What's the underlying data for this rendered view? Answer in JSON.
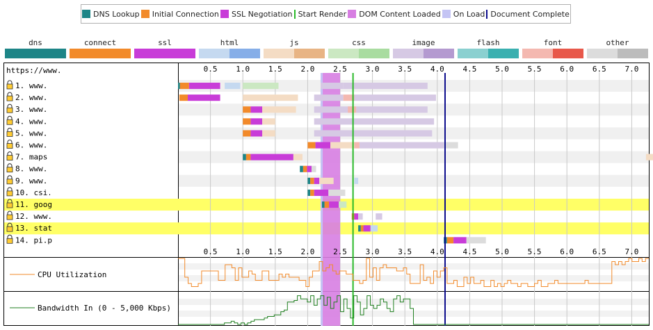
{
  "chart_data": {
    "type": "waterfall",
    "legend": [
      {
        "label": "DNS Lookup",
        "kind": "box",
        "color": "#1d8587"
      },
      {
        "label": "Initial Connection",
        "kind": "box",
        "color": "#f28a2a"
      },
      {
        "label": "SSL Negotiation",
        "kind": "box",
        "color": "#c83cd8"
      },
      {
        "label": "Start Render",
        "kind": "line",
        "color": "#28b928"
      },
      {
        "label": "DOM Content Loaded",
        "kind": "box",
        "color": "#d77ee2"
      },
      {
        "label": "On Load",
        "kind": "box",
        "color": "#c4c4f4"
      },
      {
        "label": "Document Complete",
        "kind": "line",
        "color": "#0b0b8c"
      }
    ],
    "content_types": [
      {
        "label": "dns",
        "light": "#1d8587",
        "dark": "#1d8587"
      },
      {
        "label": "connect",
        "light": "#f28a2a",
        "dark": "#f28a2a"
      },
      {
        "label": "ssl",
        "light": "#c83cd8",
        "dark": "#c83cd8"
      },
      {
        "label": "html",
        "light": "#c5d9f0",
        "dark": "#86aee8"
      },
      {
        "label": "js",
        "light": "#f4dcc4",
        "dark": "#e8b484"
      },
      {
        "label": "css",
        "light": "#cbe8c2",
        "dark": "#a9dca0"
      },
      {
        "label": "image",
        "light": "#d6c9e4",
        "dark": "#b49ad0"
      },
      {
        "label": "flash",
        "light": "#8ad0d0",
        "dark": "#3ab0b0"
      },
      {
        "label": "font",
        "light": "#f4b8b0",
        "dark": "#e8584a"
      },
      {
        "label": "other",
        "light": "#dcdcdc",
        "dark": "#bcbcbc"
      }
    ],
    "x_ticks": [
      "0.5",
      "1.0",
      "1.5",
      "2.0",
      "2.5",
      "3.0",
      "3.5",
      "4.0",
      "4.5",
      "5.0",
      "5.5",
      "6.0",
      "6.5",
      "7.0"
    ],
    "x_range": [
      0,
      7.2
    ],
    "page_url": "https://www.",
    "markers": {
      "start_render": 2.7,
      "dom_content_loaded": [
        2.2,
        2.5
      ],
      "on_load": [
        2.2,
        2.22
      ],
      "document_complete": 4.12
    },
    "rows": [
      {
        "label": "1. www.",
        "secure": true,
        "highlight": false,
        "segments": [
          [
            0.0,
            0.03,
            "dns"
          ],
          [
            0.03,
            0.17,
            "connect"
          ],
          [
            0.17,
            0.65,
            "ssl"
          ],
          [
            0.72,
            0.96,
            "html"
          ],
          [
            1.0,
            1.55,
            "css"
          ],
          [
            2.2,
            2.55,
            "image"
          ],
          [
            2.55,
            3.85,
            "image"
          ]
        ]
      },
      {
        "label": "2. www.",
        "secure": true,
        "highlight": false,
        "segments": [
          [
            0.02,
            0.15,
            "connect"
          ],
          [
            0.15,
            0.65,
            "ssl"
          ],
          [
            1.0,
            1.85,
            "js"
          ],
          [
            2.1,
            2.55,
            "image"
          ],
          [
            2.55,
            2.72,
            "font"
          ],
          [
            2.72,
            3.98,
            "image"
          ]
        ]
      },
      {
        "label": "3. www.",
        "secure": true,
        "highlight": false,
        "segments": [
          [
            1.0,
            1.12,
            "connect"
          ],
          [
            1.12,
            1.3,
            "ssl"
          ],
          [
            1.3,
            1.82,
            "js"
          ],
          [
            2.1,
            2.7,
            "image"
          ],
          [
            2.62,
            2.75,
            "font"
          ],
          [
            2.75,
            3.85,
            "image"
          ]
        ]
      },
      {
        "label": "4. www.",
        "secure": true,
        "highlight": false,
        "segments": [
          [
            1.0,
            1.12,
            "connect"
          ],
          [
            1.12,
            1.3,
            "ssl"
          ],
          [
            1.3,
            1.5,
            "js"
          ],
          [
            2.1,
            3.95,
            "image"
          ]
        ]
      },
      {
        "label": "5. www.",
        "secure": true,
        "highlight": false,
        "segments": [
          [
            1.0,
            1.12,
            "connect"
          ],
          [
            1.12,
            1.3,
            "ssl"
          ],
          [
            1.3,
            1.5,
            "js"
          ],
          [
            2.1,
            3.92,
            "image"
          ]
        ]
      },
      {
        "label": "6. www.",
        "secure": true,
        "highlight": false,
        "segments": [
          [
            2.0,
            2.12,
            "connect"
          ],
          [
            2.12,
            2.35,
            "ssl"
          ],
          [
            2.35,
            2.72,
            "js"
          ],
          [
            2.72,
            2.8,
            "font"
          ],
          [
            2.8,
            4.1,
            "image"
          ],
          [
            4.1,
            4.32,
            "other"
          ]
        ]
      },
      {
        "label": "7. maps",
        "secure": true,
        "highlight": false,
        "segments": [
          [
            1.0,
            1.05,
            "dns"
          ],
          [
            1.05,
            1.12,
            "connect"
          ],
          [
            1.12,
            1.78,
            "ssl"
          ],
          [
            1.78,
            1.92,
            "js"
          ],
          [
            7.22,
            7.45,
            "js"
          ]
        ]
      },
      {
        "label": "8. www.",
        "secure": true,
        "highlight": false,
        "segments": [
          [
            1.88,
            1.93,
            "dns"
          ],
          [
            1.93,
            1.99,
            "connect"
          ],
          [
            1.99,
            2.06,
            "ssl"
          ],
          [
            2.06,
            2.13,
            "other"
          ]
        ]
      },
      {
        "label": "9. www.",
        "secure": true,
        "highlight": false,
        "segments": [
          [
            2.0,
            2.04,
            "dns"
          ],
          [
            2.04,
            2.1,
            "connect"
          ],
          [
            2.1,
            2.18,
            "ssl"
          ],
          [
            2.18,
            2.4,
            "js"
          ],
          [
            2.72,
            2.78,
            "html"
          ]
        ]
      },
      {
        "label": "10. csi.",
        "secure": true,
        "highlight": false,
        "segments": [
          [
            2.0,
            2.04,
            "dns"
          ],
          [
            2.04,
            2.1,
            "connect"
          ],
          [
            2.1,
            2.32,
            "ssl"
          ],
          [
            2.32,
            2.58,
            "other"
          ]
        ]
      },
      {
        "label": "11. goog",
        "secure": true,
        "highlight": true,
        "segments": [
          [
            2.22,
            2.26,
            "dns"
          ],
          [
            2.26,
            2.33,
            "connect"
          ],
          [
            2.33,
            2.48,
            "ssl"
          ],
          [
            2.48,
            2.6,
            "css"
          ]
        ]
      },
      {
        "label": "12. www.",
        "secure": true,
        "highlight": false,
        "segments": [
          [
            2.68,
            2.72,
            "connect"
          ],
          [
            2.72,
            2.78,
            "ssl"
          ],
          [
            2.78,
            2.85,
            "image"
          ],
          [
            3.05,
            3.15,
            "image"
          ]
        ]
      },
      {
        "label": "13. stat",
        "secure": true,
        "highlight": true,
        "segments": [
          [
            2.78,
            2.82,
            "dns"
          ],
          [
            2.82,
            2.86,
            "connect"
          ],
          [
            2.86,
            2.97,
            "ssl"
          ],
          [
            2.97,
            3.08,
            "html"
          ]
        ]
      },
      {
        "label": "14. pi.p",
        "secure": true,
        "highlight": false,
        "segments": [
          [
            4.1,
            4.15,
            "dns"
          ],
          [
            4.15,
            4.25,
            "connect"
          ],
          [
            4.25,
            4.45,
            "ssl"
          ],
          [
            4.45,
            4.75,
            "other"
          ]
        ]
      }
    ],
    "cpu": {
      "label": "CPU Utilization",
      "color": "#f28a2a",
      "values": [
        100,
        100,
        40,
        20,
        10,
        10,
        20,
        60,
        60,
        60,
        60,
        60,
        30,
        30,
        80,
        80,
        70,
        30,
        70,
        40,
        40,
        60,
        50,
        30,
        30,
        60,
        60,
        30,
        30,
        30,
        50,
        40,
        50,
        40,
        40,
        40,
        30,
        30,
        10,
        40,
        60,
        60,
        90,
        60,
        70,
        80,
        60,
        50,
        60,
        60,
        50,
        50,
        30,
        30,
        20,
        30,
        100,
        40,
        70,
        30,
        70,
        80,
        70,
        70,
        70,
        60,
        60,
        70,
        50,
        20,
        20,
        20,
        80,
        30,
        40,
        20,
        60,
        40,
        60,
        70,
        20,
        20,
        30,
        10,
        10,
        40,
        20,
        40,
        20,
        20,
        30,
        10,
        10,
        30,
        10,
        20,
        10,
        20,
        30,
        20,
        20,
        10,
        20,
        20,
        10,
        10,
        20,
        30,
        10,
        10,
        20,
        20,
        30,
        20,
        20,
        20,
        20,
        20,
        20,
        20,
        20,
        30,
        20,
        20,
        20,
        20,
        20,
        20,
        20,
        90,
        80,
        90,
        80,
        90,
        100,
        90,
        90,
        100,
        90,
        100
      ]
    },
    "bandwidth": {
      "label": "Bandwidth In (0 - 5,000 Kbps)",
      "color": "#1f7f1f",
      "values": [
        0,
        0,
        0,
        0,
        0,
        0,
        0,
        0,
        0,
        0,
        0,
        0,
        0,
        0,
        5,
        5,
        10,
        5,
        0,
        5,
        0,
        5,
        10,
        15,
        15,
        15,
        20,
        25,
        25,
        30,
        30,
        40,
        45,
        70,
        70,
        75,
        90,
        80,
        80,
        70,
        90,
        60,
        80,
        90,
        60,
        85,
        50,
        70,
        90,
        40,
        80,
        50,
        20,
        90,
        70,
        30,
        50,
        90,
        60,
        50,
        60,
        80,
        70,
        50,
        40,
        80,
        90,
        70,
        80,
        80,
        50,
        0,
        0,
        0,
        0,
        0,
        0,
        0,
        0,
        0,
        0,
        0,
        0,
        0,
        0,
        0,
        0,
        0,
        0,
        0,
        0,
        0,
        0,
        0,
        0,
        0,
        0,
        0,
        0,
        0,
        0,
        0,
        0,
        0,
        0,
        0,
        0,
        0,
        0,
        0,
        0,
        0,
        0,
        0,
        0,
        0,
        0,
        0,
        0,
        0,
        0,
        0,
        0,
        0,
        0,
        0,
        0,
        0,
        0,
        0,
        0,
        0,
        0,
        0,
        0,
        0,
        0,
        0,
        0,
        0,
        0,
        0
      ]
    }
  }
}
